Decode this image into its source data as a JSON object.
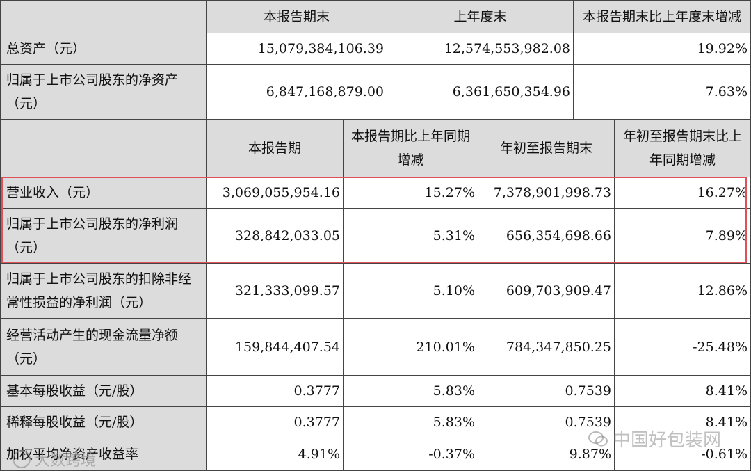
{
  "top_header": {
    "col1": "本报告期末",
    "col2": "上年度末",
    "col3": "本报告期末比上年度末增减"
  },
  "top_rows": [
    {
      "label": "总资产（元）",
      "v1": "15,079,384,106.39",
      "v2": "12,574,553,982.08",
      "v3": "19.92%"
    },
    {
      "label": "归属于上市公司股东的净资产\n（元）",
      "v1": "6,847,168,879.00",
      "v2": "6,361,650,354.96",
      "v3": "7.63%"
    }
  ],
  "second_header": {
    "col1": "本报告期",
    "col2": "本报告期比上年同期\n增减",
    "col3": "年初至报告期末",
    "col4": "年初至报告期末比上\n年同期增减"
  },
  "rows": [
    {
      "label": "营业收入（元）",
      "v1": "3,069,055,954.16",
      "v2": "15.27%",
      "v3": "7,378,901,998.73",
      "v4": "16.27%"
    },
    {
      "label": "归属于上市公司股东的净利润\n（元）",
      "v1": "328,842,033.05",
      "v2": "5.31%",
      "v3": "656,354,698.66",
      "v4": "7.89%"
    },
    {
      "label": "归属于上市公司股东的扣除非经\n常性损益的净利润（元）",
      "v1": "321,333,099.57",
      "v2": "5.10%",
      "v3": "609,703,909.47",
      "v4": "12.86%"
    },
    {
      "label": "经营活动产生的现金流量净额\n（元）",
      "v1": "159,844,407.54",
      "v2": "210.01%",
      "v3": "784,347,850.25",
      "v4": "-25.48%"
    },
    {
      "label": "基本每股收益（元/股）",
      "v1": "0.3777",
      "v2": "5.83%",
      "v3": "0.7539",
      "v4": "8.41%"
    },
    {
      "label": "稀释每股收益（元/股）",
      "v1": "0.3777",
      "v2": "5.83%",
      "v3": "0.7539",
      "v4": "8.41%"
    },
    {
      "label": "加权平均净资产收益率",
      "v1": "4.91%",
      "v2": "-0.37%",
      "v3": "9.87%",
      "v4": "-0.61%"
    }
  ],
  "watermarks": {
    "right": "中国好包装网",
    "left": "大数跨境"
  }
}
